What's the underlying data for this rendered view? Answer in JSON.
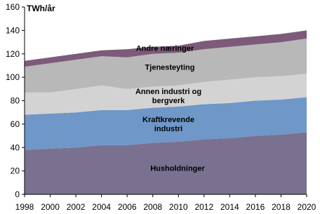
{
  "chart_data": {
    "type": "area",
    "stacked": true,
    "y_label": "TWh/år",
    "x": [
      1998,
      2000,
      2002,
      2004,
      2006,
      2008,
      2010,
      2012,
      2014,
      2016,
      2018,
      2020
    ],
    "series": [
      {
        "name": "Husholdninger",
        "color": "#7a7190",
        "values": [
          38,
          39,
          40,
          42,
          42,
          44,
          45,
          47,
          48,
          50,
          51,
          53
        ]
      },
      {
        "name": "Kraftkrevende industri",
        "color": "#6f97c8",
        "values": [
          30,
          30,
          30,
          30,
          30,
          30,
          30,
          30,
          30,
          30,
          30,
          30
        ]
      },
      {
        "name": "Annen industri og bergverk",
        "color": "#d3d3d3",
        "values": [
          19,
          18,
          20,
          21,
          18,
          18,
          18,
          19,
          20,
          20,
          20,
          20
        ]
      },
      {
        "name": "Tjenesteyting",
        "color": "#b8b8b8",
        "values": [
          22,
          25,
          25,
          25,
          27,
          28,
          28,
          28,
          28,
          28,
          29,
          30
        ]
      },
      {
        "name": "Andre næringer",
        "color": "#7d5a7a",
        "values": [
          5,
          5,
          5,
          5,
          7,
          6,
          6,
          7,
          7,
          7,
          7,
          7
        ]
      }
    ],
    "xlim": [
      1998,
      2020
    ],
    "xticks": [
      1998,
      2000,
      2002,
      2004,
      2006,
      2008,
      2010,
      2012,
      2014,
      2016,
      2018,
      2020
    ],
    "ylim": [
      0,
      160
    ],
    "yticks": [
      0,
      20,
      40,
      60,
      80,
      100,
      120,
      140,
      160
    ]
  }
}
